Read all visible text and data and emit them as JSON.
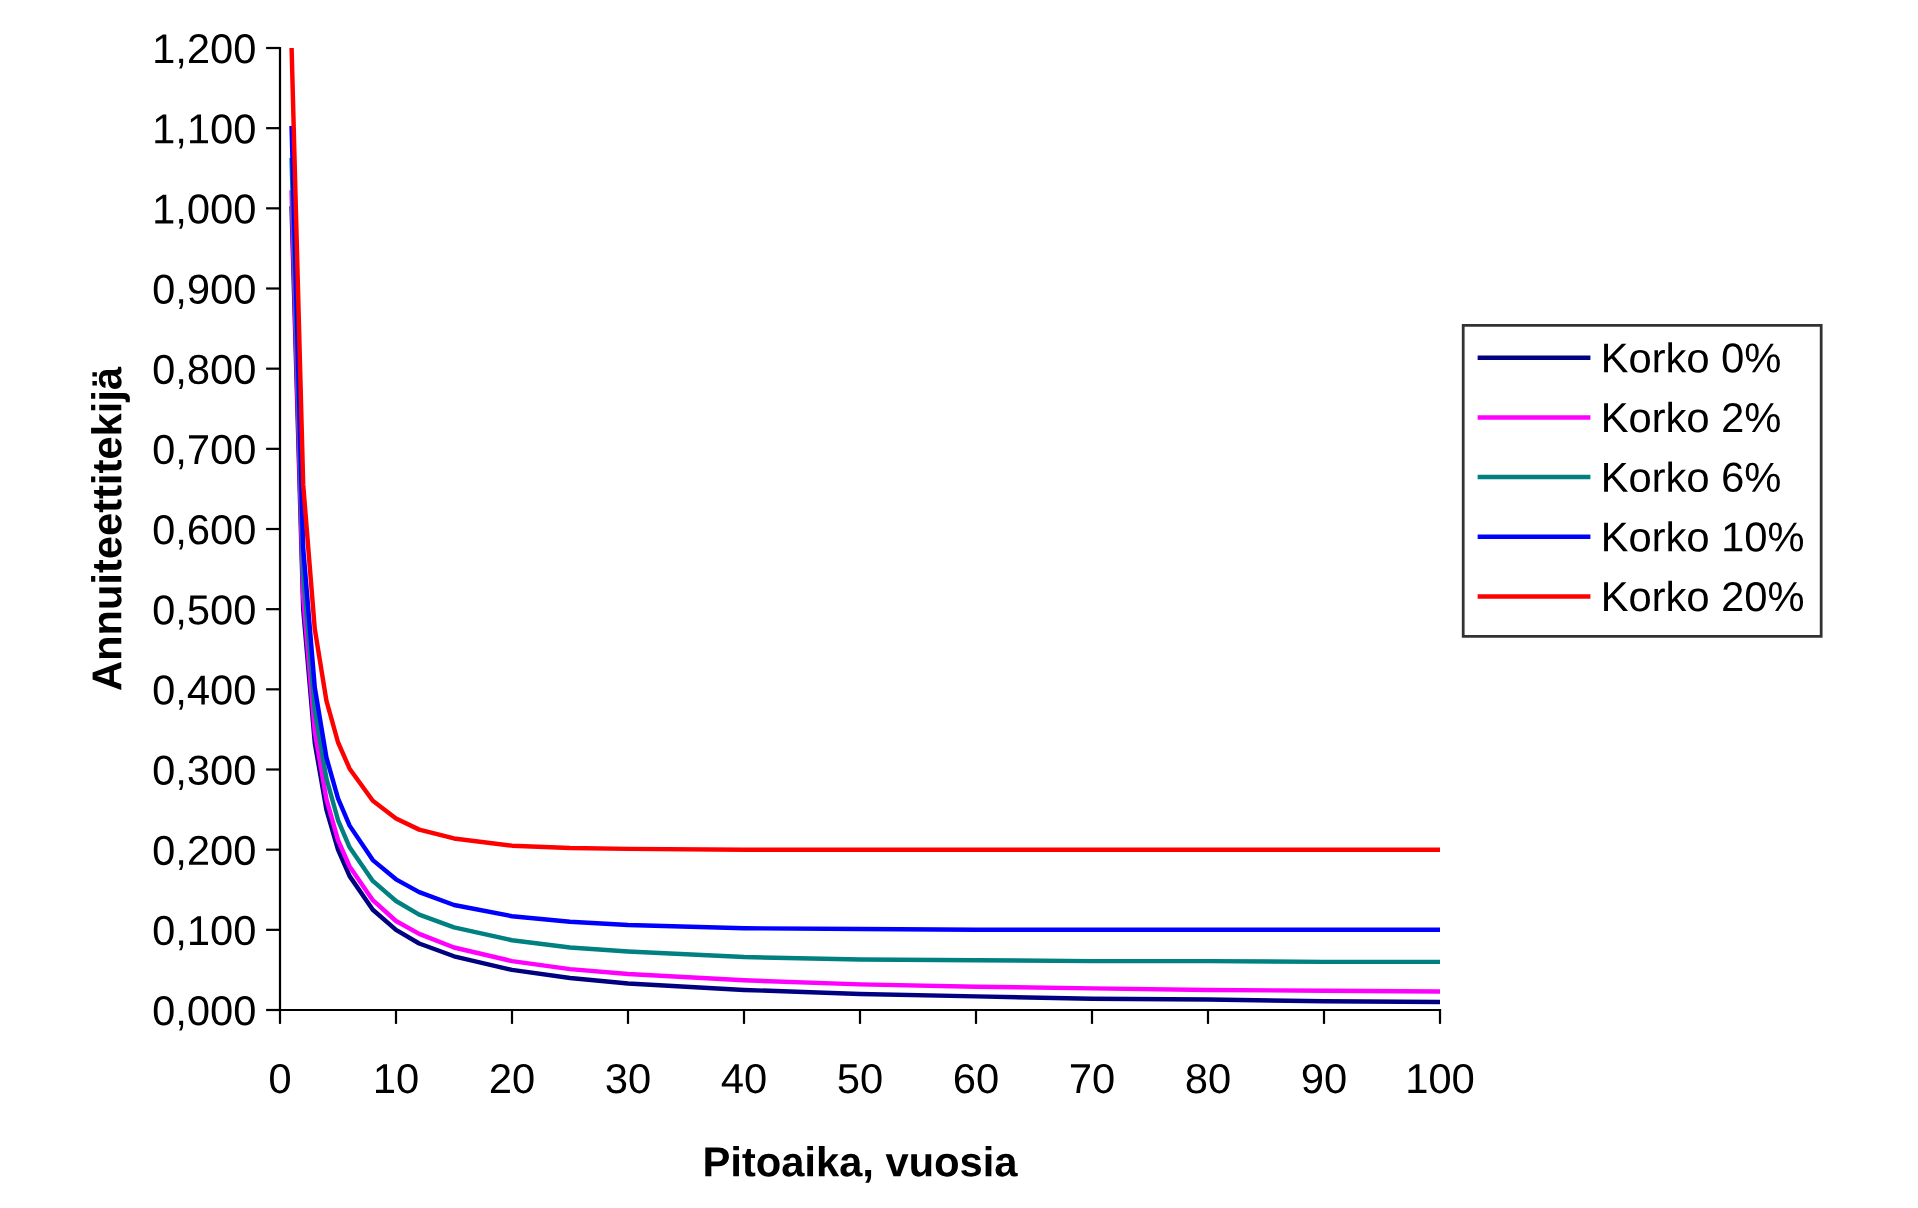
{
  "chart_data": {
    "type": "line",
    "xlabel": "Pitoaika, vuosia",
    "ylabel": "Annuiteettitekijä",
    "x": [
      1,
      2,
      3,
      4,
      5,
      6,
      8,
      10,
      12,
      15,
      20,
      25,
      30,
      40,
      50,
      60,
      70,
      80,
      90,
      100
    ],
    "series": [
      {
        "name": "Korko 0%",
        "color": "#000080",
        "values": [
          1,
          0.5,
          0.333,
          0.25,
          0.2,
          0.167,
          0.125,
          0.1,
          0.083,
          0.067,
          0.05,
          0.04,
          0.033,
          0.025,
          0.02,
          0.017,
          0.014,
          0.013,
          0.011,
          0.01
        ]
      },
      {
        "name": "Korko 2%",
        "color": "#ff00ff",
        "values": [
          1.02,
          0.515,
          0.347,
          0.263,
          0.212,
          0.179,
          0.137,
          0.111,
          0.095,
          0.078,
          0.061,
          0.051,
          0.045,
          0.037,
          0.032,
          0.029,
          0.027,
          0.025,
          0.024,
          0.023
        ]
      },
      {
        "name": "Korko 6%",
        "color": "#008080",
        "values": [
          1.06,
          0.545,
          0.374,
          0.289,
          0.237,
          0.203,
          0.161,
          0.136,
          0.119,
          0.103,
          0.087,
          0.078,
          0.073,
          0.066,
          0.063,
          0.062,
          0.061,
          0.061,
          0.06,
          0.06
        ]
      },
      {
        "name": "Korko 10%",
        "color": "#0000ff",
        "values": [
          1.1,
          0.576,
          0.402,
          0.315,
          0.264,
          0.23,
          0.187,
          0.163,
          0.147,
          0.131,
          0.117,
          0.11,
          0.106,
          0.102,
          0.101,
          0.1,
          0.1,
          0.1,
          0.1,
          0.1
        ]
      },
      {
        "name": "Korko 20%",
        "color": "#ff0000",
        "values": [
          1.2,
          0.655,
          0.475,
          0.386,
          0.334,
          0.301,
          0.261,
          0.239,
          0.225,
          0.214,
          0.205,
          0.202,
          0.201,
          0.2,
          0.2,
          0.2,
          0.2,
          0.2,
          0.2,
          0.2
        ]
      }
    ],
    "xlim": [
      0,
      100
    ],
    "xticks": [
      0,
      10,
      20,
      30,
      40,
      50,
      60,
      70,
      80,
      90,
      100
    ],
    "ylim": [
      0,
      1.2
    ],
    "yticks": [
      {
        "value": 0,
        "label": "0,000"
      },
      {
        "value": 0.1,
        "label": "0,100"
      },
      {
        "value": 0.2,
        "label": "0,200"
      },
      {
        "value": 0.3,
        "label": "0,300"
      },
      {
        "value": 0.4,
        "label": "0,400"
      },
      {
        "value": 0.5,
        "label": "0,500"
      },
      {
        "value": 0.6,
        "label": "0,600"
      },
      {
        "value": 0.7,
        "label": "0,700"
      },
      {
        "value": 0.8,
        "label": "0,800"
      },
      {
        "value": 0.9,
        "label": "0,900"
      },
      {
        "value": 1.0,
        "label": "1,000"
      },
      {
        "value": 1.1,
        "label": "1,100"
      },
      {
        "value": 1.2,
        "label": "1,200"
      }
    ],
    "grid": false,
    "legend": "right",
    "marker": "none",
    "line_style": "solid"
  }
}
